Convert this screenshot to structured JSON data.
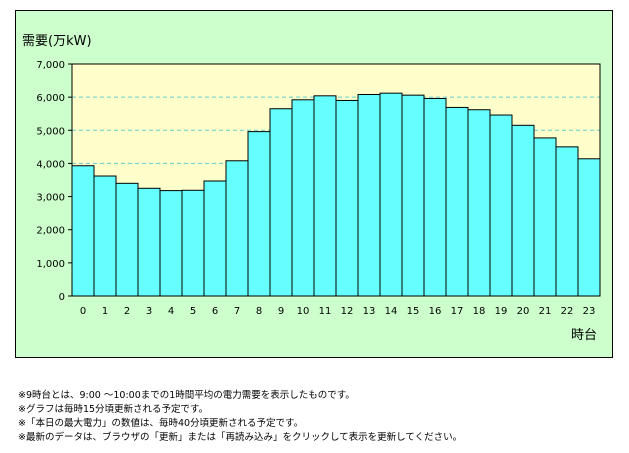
{
  "chart_data": {
    "type": "bar",
    "ylabel": "需要(万kW)",
    "xlabel": "時台",
    "categories": [
      "0",
      "1",
      "2",
      "3",
      "4",
      "5",
      "6",
      "7",
      "8",
      "9",
      "10",
      "11",
      "12",
      "13",
      "14",
      "15",
      "16",
      "17",
      "18",
      "19",
      "20",
      "21",
      "22",
      "23"
    ],
    "values": [
      3930,
      3620,
      3400,
      3250,
      3180,
      3190,
      3470,
      4080,
      4960,
      5650,
      5920,
      6040,
      5900,
      6080,
      6120,
      6060,
      5960,
      5690,
      5620,
      5460,
      5150,
      4770,
      4500,
      4140
    ],
    "ylim": [
      0,
      7000
    ],
    "yticks": [
      "0",
      "1,000",
      "2,000",
      "3,000",
      "4,000",
      "5,000",
      "6,000",
      "7,000"
    ],
    "grid": true,
    "colors": {
      "bar_fill": "#66ffff",
      "bar_stroke": "#000000",
      "plot_bg": "#ffffcc",
      "frame_bg": "#ccffcc",
      "grid": "#66cccc"
    }
  },
  "notes": [
    "※9時台とは、9:00 ～10:00までの1時間平均の電力需要を表示したものです。",
    "※グラフは毎時15分頃更新される予定です。",
    "※「本日の最大電力」の数値は、毎時40分頃更新される予定です。",
    "※最新のデータは、ブラウザの「更新」または「再読み込み」をクリックして表示を更新してください。"
  ]
}
